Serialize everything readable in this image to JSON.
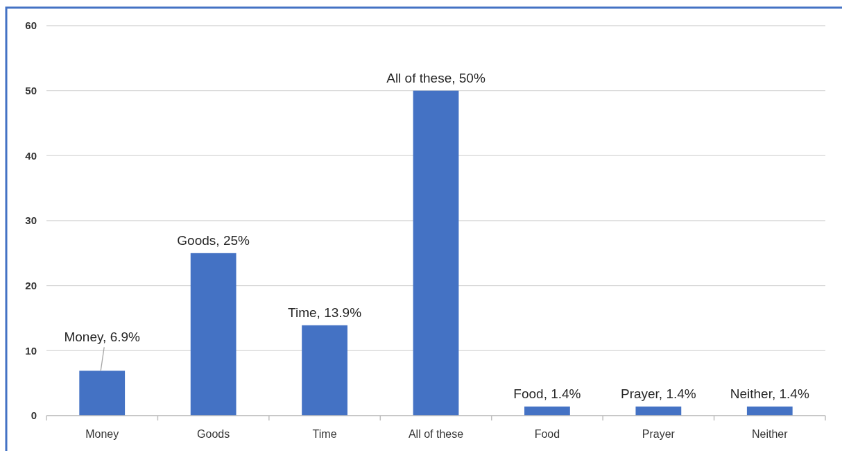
{
  "chart_data": {
    "type": "bar",
    "categories": [
      "Money",
      "Goods",
      "Time",
      "All of these",
      "Food",
      "Prayer",
      "Neither"
    ],
    "values": [
      6.9,
      25,
      13.9,
      50,
      1.4,
      1.4,
      1.4
    ],
    "color": "#4472c4",
    "ylim": [
      0,
      60
    ],
    "yticks": [
      0,
      10,
      20,
      30,
      40,
      50,
      60
    ],
    "grid": "y",
    "value_labels": [
      "Money, 6.9%",
      "Goods, 25%",
      "Time, 13.9%",
      "All of these, 50%",
      "Food, 1.4%",
      "Prayer, 1.4%",
      "Neither, 1.4%"
    ]
  }
}
